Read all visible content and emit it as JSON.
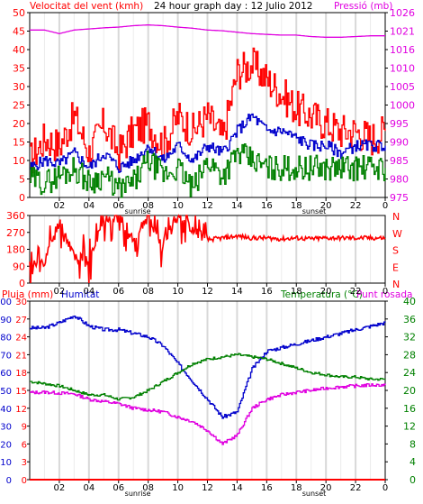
{
  "header": {
    "title": "24 hour graph day : 12 Julio 2012"
  },
  "colors": {
    "wind": "#ff0000",
    "wind_avg": "#0000cc",
    "wind_low": "#008000",
    "pressure": "#e000e0",
    "humidity": "#0000cc",
    "temperature": "#008000",
    "dewpoint": "#e000e0",
    "rain": "#ff0000",
    "axis": "#000000",
    "grid": "#d8d8d8"
  },
  "x_axis": {
    "labels": [
      "02",
      "04",
      "06",
      "08",
      "10",
      "12",
      "14",
      "16",
      "18",
      "20",
      "22",
      "0"
    ],
    "sunrise_label": "sunrise",
    "sunset_label": "sunset"
  },
  "chart_data": [
    {
      "type": "line",
      "panel": "wind",
      "title": "24 hour graph day : 12 Julio 2012",
      "ylabel": "Velocitat del vent (kmh)",
      "ylabel_right": "Pressió (mb)",
      "ylim": [
        0,
        50
      ],
      "ylim_right": [
        975,
        1026
      ],
      "y_ticks": [
        0,
        5,
        10,
        15,
        20,
        25,
        30,
        35,
        40,
        45,
        50
      ],
      "y_ticks_right": [
        975,
        980,
        985,
        990,
        995,
        1000,
        1005,
        1010,
        1016,
        1021,
        1026
      ],
      "x": [
        0,
        1,
        2,
        3,
        4,
        5,
        6,
        7,
        8,
        9,
        10,
        11,
        12,
        13,
        14,
        15,
        16,
        17,
        18,
        19,
        20,
        21,
        22,
        23,
        24
      ],
      "series": [
        {
          "key": "gust",
          "values": [
            10,
            16,
            14,
            22,
            12,
            20,
            12,
            18,
            20,
            14,
            22,
            18,
            22,
            16,
            34,
            36,
            32,
            28,
            24,
            22,
            20,
            18,
            18,
            16,
            18
          ]
        },
        {
          "key": "avg",
          "values": [
            8,
            10,
            9,
            12,
            8,
            12,
            8,
            10,
            14,
            10,
            14,
            10,
            14,
            12,
            18,
            22,
            18,
            18,
            16,
            14,
            14,
            12,
            14,
            14,
            14
          ]
        },
        {
          "key": "low",
          "values": [
            5,
            4,
            6,
            8,
            4,
            6,
            2,
            4,
            10,
            6,
            8,
            2,
            10,
            6,
            12,
            10,
            8,
            8,
            8,
            8,
            8,
            8,
            8,
            8,
            8
          ]
        },
        {
          "key": "pressure",
          "values": [
            1021.2,
            1021.2,
            1020.2,
            1021.2,
            1021.5,
            1021.8,
            1022.0,
            1022.4,
            1022.6,
            1022.4,
            1022.0,
            1021.7,
            1021.2,
            1021.0,
            1020.6,
            1020.2,
            1020.0,
            1019.8,
            1019.8,
            1019.4,
            1019.2,
            1019.2,
            1019.4,
            1019.6,
            1019.6
          ]
        }
      ]
    },
    {
      "type": "line",
      "panel": "direction",
      "ylim": [
        0,
        360
      ],
      "y_ticks": [
        0,
        90,
        180,
        270,
        360
      ],
      "right_labels": [
        "N",
        "W",
        "S",
        "E",
        "N"
      ],
      "x": [
        0,
        1,
        2,
        3,
        4,
        5,
        6,
        7,
        8,
        9,
        10,
        11,
        12,
        13,
        14,
        15,
        16,
        17,
        18,
        19,
        20,
        21,
        22,
        23,
        24
      ],
      "series": [
        {
          "key": "direction",
          "values": [
            90,
            120,
            330,
            150,
            110,
            340,
            360,
            220,
            360,
            200,
            360,
            290,
            230,
            240,
            250,
            240,
            240,
            235,
            240,
            235,
            240,
            240,
            240,
            240,
            240
          ]
        }
      ]
    },
    {
      "type": "line",
      "panel": "temp_hum",
      "ylabel": "Pluja (mm)",
      "ylabel2": "Humitat",
      "ylabel_right": "Temperatura (°C)",
      "ylabel_right2": "Punt rosada",
      "ylim_rain": [
        0,
        30
      ],
      "ylim_hum": [
        0,
        100
      ],
      "ylim_right": [
        0,
        40
      ],
      "y_ticks_rain": [
        0,
        3,
        6,
        9,
        12,
        15,
        18,
        21,
        24,
        27,
        30
      ],
      "y_ticks_hum": [
        0,
        10,
        20,
        30,
        40,
        50,
        60,
        70,
        80,
        90,
        100
      ],
      "y_ticks_right": [
        0,
        4,
        8,
        12,
        16,
        20,
        24,
        28,
        32,
        36,
        40
      ],
      "x": [
        0,
        1,
        2,
        3,
        4,
        5,
        6,
        7,
        8,
        9,
        10,
        11,
        12,
        13,
        14,
        15,
        16,
        17,
        18,
        19,
        20,
        21,
        22,
        23,
        24
      ],
      "series": [
        {
          "key": "humidity",
          "values": [
            85,
            85,
            88,
            92,
            86,
            84,
            84,
            82,
            80,
            75,
            65,
            55,
            45,
            35,
            38,
            62,
            72,
            74,
            76,
            78,
            80,
            82,
            84,
            86,
            88
          ]
        },
        {
          "key": "temperature",
          "values": [
            22,
            21.5,
            21,
            20,
            19,
            19,
            18,
            18.5,
            20,
            22,
            24,
            26,
            27,
            27.5,
            28,
            27.5,
            27,
            26,
            25,
            24,
            23.5,
            23,
            23,
            22.5,
            22.5
          ]
        },
        {
          "key": "dewpoint",
          "values": [
            19.5,
            19.6,
            19.4,
            19.2,
            18,
            17.5,
            17,
            16,
            15.6,
            15.2,
            14,
            13,
            11,
            8,
            10,
            16,
            18,
            19,
            19.6,
            20,
            20.5,
            20.8,
            21,
            21.2,
            21.2
          ]
        },
        {
          "key": "rain",
          "values": [
            0,
            0,
            0,
            0,
            0,
            0,
            0,
            0,
            0,
            0,
            0,
            0,
            0,
            0,
            0,
            0,
            0,
            0,
            0,
            0,
            0,
            0,
            0,
            0,
            0
          ]
        }
      ]
    }
  ]
}
